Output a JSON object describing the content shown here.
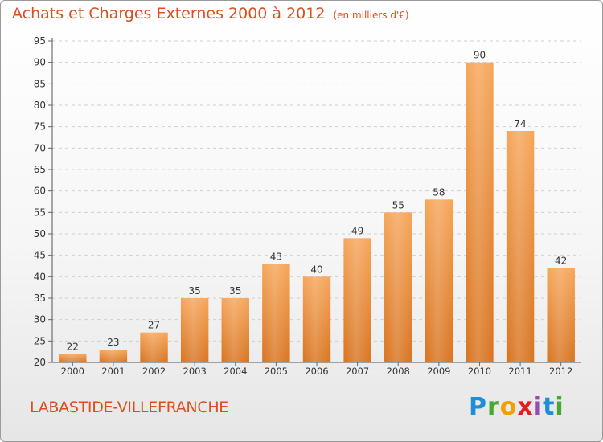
{
  "title": "Achats et Charges Externes 2000 à 2012",
  "title_unit": "(en milliers d'€)",
  "commune": "LABASTIDE-VILLEFRANCHE",
  "logo": {
    "letters": [
      "P",
      "r",
      "o",
      "x",
      "i",
      "t",
      "i"
    ],
    "colors": [
      "#1e8fd6",
      "#4aa832",
      "#f0a000",
      "#e02020",
      "#8e4fb0",
      "#1e8fd6",
      "#4aa832"
    ]
  },
  "colors": {
    "title": "#d8501e",
    "bar_top": "#f6a65a",
    "bar_bottom": "#d87420",
    "grid": "#cfcfcf",
    "axis_text": "#333333"
  },
  "chart_data": {
    "type": "bar",
    "categories": [
      "2000",
      "2001",
      "2002",
      "2003",
      "2004",
      "2005",
      "2006",
      "2007",
      "2008",
      "2009",
      "2010",
      "2011",
      "2012"
    ],
    "values": [
      22,
      23,
      27,
      35,
      35,
      43,
      40,
      49,
      55,
      58,
      90,
      74,
      42
    ],
    "data_labels": [
      "22",
      "23",
      "27",
      "35",
      "35",
      "43",
      "40",
      "49",
      "55",
      "58",
      "90",
      "74",
      "42"
    ],
    "ylim": [
      20,
      95
    ],
    "yticks": [
      20,
      25,
      30,
      35,
      40,
      45,
      50,
      55,
      60,
      65,
      70,
      75,
      80,
      85,
      90,
      95
    ],
    "title": "Achats et Charges Externes 2000 à 2012",
    "xlabel": "",
    "ylabel": "",
    "grid": true
  }
}
